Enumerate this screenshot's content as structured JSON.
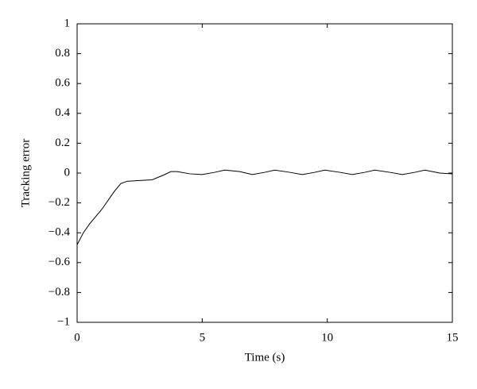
{
  "chart_data": {
    "type": "line",
    "x_label": "Time (s)",
    "y_label": "Tracking error",
    "x": [
      0,
      0.25,
      0.5,
      0.75,
      1.0,
      1.25,
      1.5,
      1.75,
      2.0,
      2.5,
      3.0,
      3.5,
      3.75,
      4.0,
      4.5,
      5.0,
      5.5,
      5.9,
      6.5,
      7.0,
      7.5,
      7.9,
      8.5,
      9.0,
      9.5,
      9.9,
      10.5,
      11.0,
      11.5,
      11.9,
      12.5,
      13.0,
      13.5,
      13.9,
      14.5,
      15
    ],
    "series": [
      {
        "color": "#000000",
        "values": [
          -0.48,
          -0.4,
          -0.34,
          -0.29,
          -0.24,
          -0.18,
          -0.12,
          -0.07,
          -0.055,
          -0.05,
          -0.045,
          -0.01,
          0.01,
          0.01,
          -0.005,
          -0.01,
          0.005,
          0.02,
          0.01,
          -0.01,
          0.005,
          0.02,
          0.005,
          -0.01,
          0.005,
          0.02,
          0.005,
          -0.01,
          0.005,
          0.02,
          0.005,
          -0.01,
          0.005,
          0.02,
          0.0,
          -0.005
        ]
      }
    ],
    "xlim": [
      0,
      15
    ],
    "xticks": [
      0,
      5,
      10,
      15
    ],
    "ylim": [
      -1,
      1
    ],
    "yticks": [
      {
        "value": -1,
        "label": "−1"
      },
      {
        "value": -0.8,
        "label": "−0.8"
      },
      {
        "value": -0.6,
        "label": "−0.6"
      },
      {
        "value": -0.4,
        "label": "−0.4"
      },
      {
        "value": -0.2,
        "label": "−0.2"
      },
      0,
      0.2,
      0.4,
      0.6,
      0.8,
      1
    ],
    "grid": false
  }
}
